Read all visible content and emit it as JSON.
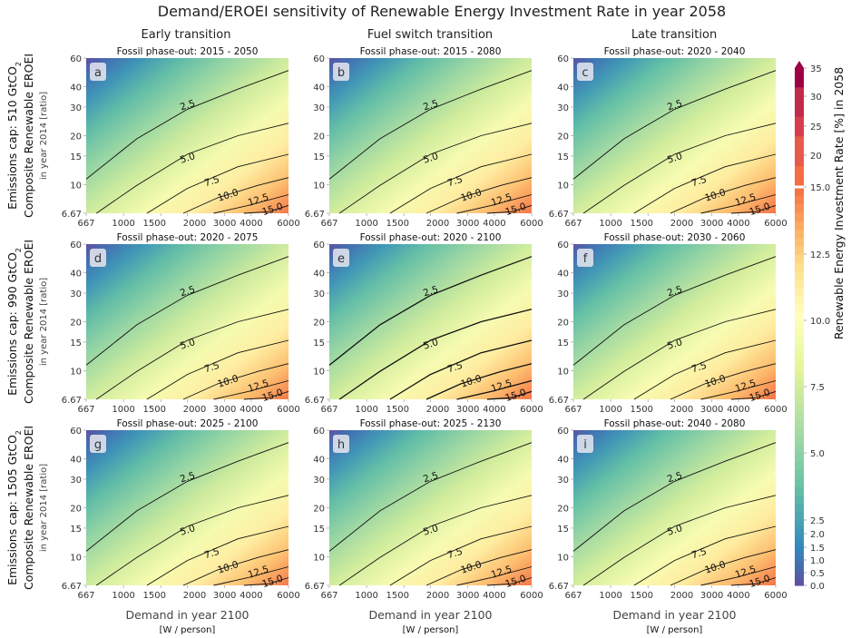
{
  "title": "Demand/EROEI sensitivity of Renewable Energy Investment Rate in year 2058",
  "columns": [
    "Early transition",
    "Fuel switch transition",
    "Late transition"
  ],
  "rows": [
    {
      "cap": "Emissions cap: 510 GtCO",
      "sub": "2",
      "ylabel": "Composite Renewable EROEI",
      "ysub": "in year 2014 [ratio]"
    },
    {
      "cap": "Emissions cap: 990 GtCO",
      "sub": "2",
      "ylabel": "Composite Renewable EROEI",
      "ysub": "in year 2014 [ratio]"
    },
    {
      "cap": "Emissions cap: 1505 GtCO",
      "sub": "2",
      "ylabel": "Composite Renewable EROEI",
      "ysub": "in year 2014 [ratio]"
    }
  ],
  "xlabel": "Demand in year 2100",
  "xunit": "[W / person]",
  "colorbar_label": "Renewable Energy Investment Rate [%] in 2058",
  "chart_data": {
    "type": "contour",
    "x_scale": "log",
    "y_scale": "log",
    "x_ticks": [
      "667",
      "1000",
      "1500",
      "2000",
      "3000",
      "4000",
      "6000"
    ],
    "x_tick_values": [
      667,
      1000,
      1500,
      2000,
      3000,
      4000,
      6000
    ],
    "y_ticks": [
      "6.67",
      "10",
      "15",
      "20",
      "30",
      "40",
      "60"
    ],
    "y_tick_values": [
      6.67,
      10,
      15,
      20,
      30,
      40,
      60
    ],
    "xlim": [
      667,
      6000
    ],
    "ylim": [
      6.67,
      60
    ],
    "contour_levels": [
      "2.5",
      "5.0",
      "7.5",
      "10.0",
      "12.5",
      "15.0"
    ],
    "colorbar_ticks": [
      "0.0",
      "0.5",
      "1.0",
      "1.5",
      "2.0",
      "2.5",
      "5.0",
      "7.5",
      "10.0",
      "12.5",
      "15.0",
      "20",
      "25",
      "30",
      "35"
    ],
    "colorbar_range": [
      0,
      35
    ],
    "colormap": "Spectral_r",
    "panels": [
      {
        "letter": "a",
        "title": "Fossil phase-out: 2015 - 2050",
        "row": 0,
        "col": 0
      },
      {
        "letter": "b",
        "title": "Fossil phase-out: 2015 - 2080",
        "row": 0,
        "col": 1
      },
      {
        "letter": "c",
        "title": "Fossil phase-out: 2020 - 2040",
        "row": 0,
        "col": 2
      },
      {
        "letter": "d",
        "title": "Fossil phase-out: 2020 - 2075",
        "row": 1,
        "col": 0
      },
      {
        "letter": "e",
        "title": "Fossil phase-out: 2020 - 2100",
        "row": 1,
        "col": 1
      },
      {
        "letter": "f",
        "title": "Fossil phase-out: 2030 - 2060",
        "row": 1,
        "col": 2
      },
      {
        "letter": "g",
        "title": "Fossil phase-out: 2025 - 2100",
        "row": 2,
        "col": 0
      },
      {
        "letter": "h",
        "title": "Fossil phase-out: 2025 - 2130",
        "row": 2,
        "col": 1
      },
      {
        "letter": "i",
        "title": "Fossil phase-out: 2040 - 2080",
        "row": 2,
        "col": 2
      }
    ]
  }
}
